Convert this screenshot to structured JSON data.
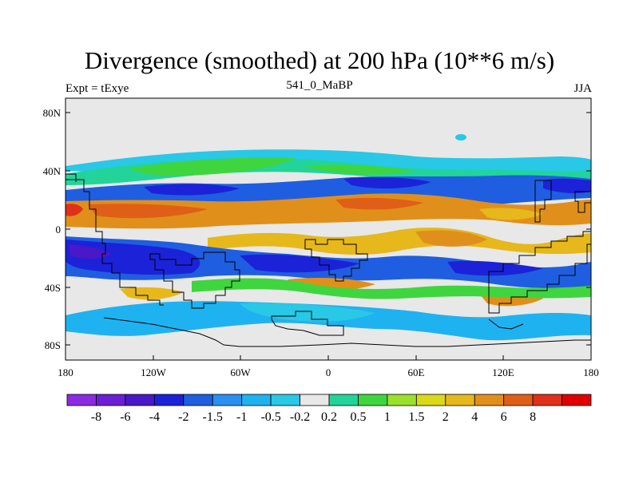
{
  "title": "Divergence (smoothed) at 200 hPa (10**6 m/s)",
  "subtitle_left": "Expt = tExye",
  "subtitle_center": "541_0_MaBP",
  "subtitle_right": "JJA",
  "lat_ticks": [
    "80N",
    "40N",
    "0",
    "40S",
    "80S"
  ],
  "lon_ticks": [
    "180",
    "120W",
    "60W",
    "0",
    "60E",
    "120E",
    "180"
  ],
  "colorbar": {
    "colors": [
      "#8a2be2",
      "#6a1fd6",
      "#4a17c9",
      "#1c22d8",
      "#1f5ee0",
      "#2b8ff0",
      "#1fb2f0",
      "#28c8e6",
      "#e8e8e8",
      "#22d49a",
      "#3fd53f",
      "#9be02a",
      "#d9d91a",
      "#e6b81b",
      "#e0901a",
      "#e05f18",
      "#e0301a",
      "#e00000"
    ],
    "labels": [
      "-8",
      "-6",
      "-4",
      "-2",
      "-1.5",
      "-1",
      "-0.5",
      "-0.2",
      "0.2",
      "0.5",
      "1",
      "1.5",
      "2",
      "4",
      "6",
      "8"
    ]
  }
}
